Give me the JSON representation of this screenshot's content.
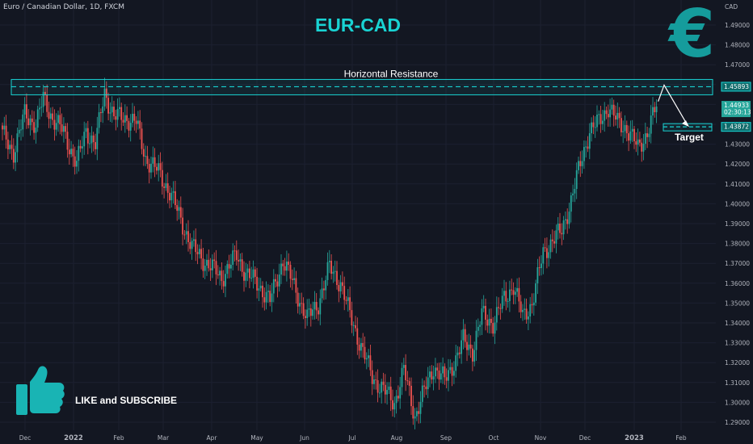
{
  "symbol_title": "Euro / Canadian Dollar, 1D, FXCM",
  "title": "EUR-CAD",
  "currency_icon": "euro-icon",
  "promo": {
    "icon": "thumbs-up-icon",
    "label": "LIKE and SUBSCRIBE"
  },
  "colors": {
    "up": "#26a69a",
    "down": "#ef5350",
    "accent": "#19d3d3",
    "background": "#131722"
  },
  "chart_data": {
    "type": "candlestick",
    "title": "EUR-CAD",
    "currency": "CAD",
    "ylim": [
      1.286,
      1.498
    ],
    "y_ticks": [
      "1.29000",
      "1.30000",
      "1.31000",
      "1.32000",
      "1.33000",
      "1.34000",
      "1.35000",
      "1.36000",
      "1.37000",
      "1.38000",
      "1.39000",
      "1.40000",
      "1.41000",
      "1.42000",
      "1.43000",
      "1.44000",
      "1.45000",
      "1.46000",
      "1.47000",
      "1.48000",
      "1.49000"
    ],
    "x_ticks": [
      "Dec",
      "2022",
      "Feb",
      "Mar",
      "Apr",
      "May",
      "Jun",
      "Jul",
      "Aug",
      "Sep",
      "Oct",
      "Nov",
      "Dec",
      "2023",
      "Feb"
    ],
    "grid": true,
    "close_path": [
      [
        0,
        1.435
      ],
      [
        6,
        1.426
      ],
      [
        12,
        1.445
      ],
      [
        18,
        1.44
      ],
      [
        22,
        1.453
      ],
      [
        27,
        1.443
      ],
      [
        33,
        1.436
      ],
      [
        40,
        1.42
      ],
      [
        45,
        1.437
      ],
      [
        50,
        1.43
      ],
      [
        55,
        1.456
      ],
      [
        60,
        1.444
      ],
      [
        67,
        1.443
      ],
      [
        72,
        1.441
      ],
      [
        77,
        1.423
      ],
      [
        84,
        1.416
      ],
      [
        90,
        1.406
      ],
      [
        96,
        1.392
      ],
      [
        102,
        1.378
      ],
      [
        110,
        1.37
      ],
      [
        118,
        1.363
      ],
      [
        126,
        1.374
      ],
      [
        131,
        1.365
      ],
      [
        138,
        1.359
      ],
      [
        144,
        1.351
      ],
      [
        151,
        1.372
      ],
      [
        158,
        1.356
      ],
      [
        164,
        1.342
      ],
      [
        170,
        1.35
      ],
      [
        176,
        1.368
      ],
      [
        182,
        1.36
      ],
      [
        186,
        1.347
      ],
      [
        193,
        1.328
      ],
      [
        199,
        1.313
      ],
      [
        205,
        1.306
      ],
      [
        211,
        1.3
      ],
      [
        216,
        1.316
      ],
      [
        222,
        1.293
      ],
      [
        226,
        1.303
      ],
      [
        232,
        1.318
      ],
      [
        238,
        1.311
      ],
      [
        244,
        1.322
      ],
      [
        248,
        1.331
      ],
      [
        253,
        1.326
      ],
      [
        258,
        1.344
      ],
      [
        264,
        1.34
      ],
      [
        270,
        1.352
      ],
      [
        275,
        1.359
      ],
      [
        280,
        1.343
      ],
      [
        285,
        1.35
      ],
      [
        291,
        1.375
      ],
      [
        296,
        1.382
      ],
      [
        301,
        1.386
      ],
      [
        306,
        1.402
      ],
      [
        311,
        1.42
      ],
      [
        316,
        1.437
      ],
      [
        321,
        1.441
      ],
      [
        326,
        1.449
      ],
      [
        331,
        1.441
      ],
      [
        336,
        1.438
      ],
      [
        342,
        1.428
      ],
      [
        347,
        1.436
      ],
      [
        352,
        1.449
      ]
    ],
    "y_labels": {
      "resistance": "1.45893",
      "last_price": "1.44933",
      "countdown": "02:30:13",
      "target": "1.43872"
    },
    "levels": {
      "resistance": 1.45893,
      "last_price": 1.44933,
      "target": 1.43872
    },
    "annotations": {
      "resistance_label": "Horizontal Resistance",
      "target_label": "Target"
    }
  }
}
